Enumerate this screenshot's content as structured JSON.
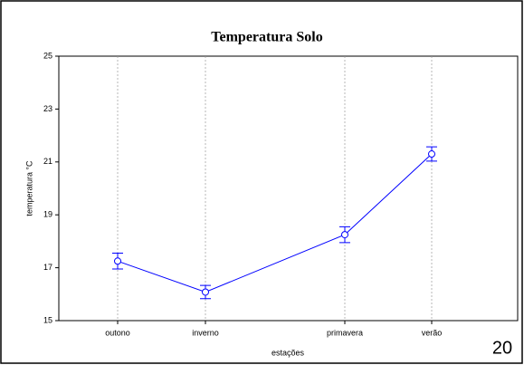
{
  "chart_data": {
    "type": "line",
    "title": "Temperatura Solo",
    "x_label": "estações",
    "y_label": "temperatura °C",
    "categories": [
      "outono",
      "inverno",
      "primavera",
      "verão"
    ],
    "values": [
      17.25,
      16.08,
      18.25,
      21.3
    ],
    "errors": [
      0.3,
      0.25,
      0.3,
      0.27
    ],
    "color": "#0000ff",
    "ylim": [
      15,
      25
    ],
    "yticks": [
      15,
      17,
      19,
      21,
      23,
      25
    ],
    "grid": true
  },
  "page_number": "20"
}
